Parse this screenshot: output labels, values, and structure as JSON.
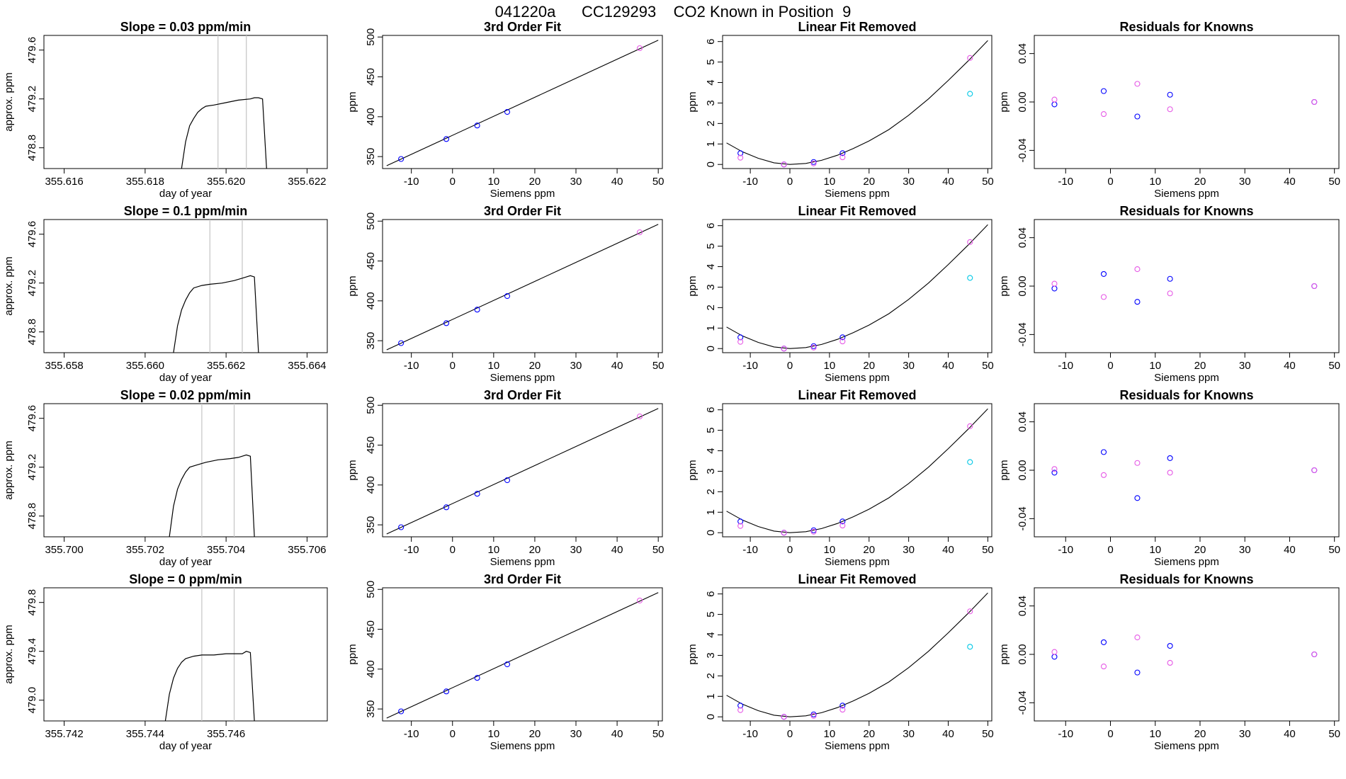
{
  "figure_title": "041220a      CC129293    CO2 Known in Position  9",
  "colors": {
    "series_blue": "#0000ff",
    "series_magenta": "#e659e6",
    "series_cyan": "#00c8e6",
    "line": "#000000",
    "window_marker": "#c8c8c8",
    "noise_red": "#ff0000"
  },
  "chart_data": [
    {
      "type": "line",
      "panel": "timeseries",
      "row": 0,
      "title": "Slope =  0.03  ppm/min",
      "xlabel": "day of year",
      "ylabel": "approx. ppm",
      "xlim": [
        355.6155,
        355.6225
      ],
      "ylim": [
        478.63,
        479.72
      ],
      "xticks": [
        "355.616",
        "355.618",
        "355.620",
        "355.622"
      ],
      "yticks": [
        "478.8",
        "479.2",
        "479.6"
      ],
      "window_markers": [
        355.6198,
        355.6205
      ],
      "series": [
        {
          "x": [
            355.6189,
            355.619,
            355.6191,
            355.6192,
            355.6193,
            355.6194,
            355.6195,
            355.6197,
            355.62,
            355.6203,
            355.6206,
            355.6207,
            355.6208,
            355.6209,
            355.621
          ],
          "y": [
            478.63,
            478.85,
            478.98,
            479.04,
            479.09,
            479.12,
            479.14,
            479.15,
            479.17,
            479.19,
            479.2,
            479.21,
            479.21,
            479.2,
            478.63
          ]
        }
      ]
    },
    {
      "type": "scatter",
      "panel": "fit",
      "row": 0,
      "title": "3rd Order Fit",
      "xlabel": "Siemens ppm",
      "ylabel": "ppm",
      "xlim": [
        -17,
        51
      ],
      "ylim": [
        335,
        502
      ],
      "xticks": [
        -10,
        0,
        10,
        20,
        30,
        40,
        50
      ],
      "yticks": [
        350,
        400,
        450,
        500
      ],
      "fit_line": {
        "x": [
          -16,
          50
        ],
        "y": [
          338.5,
          496
        ]
      },
      "series": [
        {
          "x": [
            -12.5,
            -1.5,
            6,
            13.3
          ],
          "y": [
            347,
            372,
            389,
            406
          ]
        },
        {
          "x": [
            45.5
          ],
          "y": [
            486
          ]
        }
      ]
    },
    {
      "type": "scatter",
      "panel": "linear_removed",
      "row": 0,
      "title": "Linear Fit Removed",
      "xlabel": "Siemens ppm",
      "ylabel": "ppm",
      "xlim": [
        -17,
        51
      ],
      "ylim": [
        -0.2,
        6.3
      ],
      "xticks": [
        -10,
        0,
        10,
        20,
        30,
        40,
        50
      ],
      "yticks": [
        0,
        1,
        2,
        3,
        4,
        5,
        6
      ],
      "curve": {
        "x": [
          -16,
          -12,
          -8,
          -4,
          0,
          4,
          8,
          12,
          16,
          20,
          25,
          30,
          35,
          40,
          45,
          50
        ],
        "y": [
          1.05,
          0.62,
          0.3,
          0.08,
          0,
          0.05,
          0.2,
          0.45,
          0.78,
          1.15,
          1.7,
          2.4,
          3.2,
          4.1,
          5.05,
          6.05
        ]
      },
      "series": [
        {
          "x": [
            -12.5,
            -1.5,
            6,
            13.3
          ],
          "y": [
            0.55,
            0,
            0.12,
            0.55
          ]
        },
        {
          "x": [
            -12.5,
            -1.5,
            6,
            13.3,
            45.5
          ],
          "y": [
            0.33,
            0,
            0.05,
            0.35,
            5.2
          ]
        },
        {
          "x": [
            45.5
          ],
          "y": [
            3.45
          ]
        }
      ]
    },
    {
      "type": "scatter",
      "panel": "residuals",
      "row": 0,
      "title": "Residuals for Knowns",
      "xlabel": "Siemens ppm",
      "ylabel": "ppm",
      "xlim": [
        -17,
        51
      ],
      "ylim": [
        -0.055,
        0.055
      ],
      "xticks": [
        -10,
        0,
        10,
        20,
        30,
        40,
        50
      ],
      "yticks": [
        "-0.04",
        "0.00",
        "0.04"
      ],
      "series": [
        {
          "x": [
            -12.5,
            -1.5,
            6,
            13.3,
            45.5
          ],
          "y": [
            -0.002,
            0.009,
            -0.012,
            0.006,
            0
          ]
        },
        {
          "x": [
            -12.5,
            -1.5,
            6,
            13.3,
            45.5
          ],
          "y": [
            0.002,
            -0.01,
            0.015,
            -0.006,
            0
          ]
        }
      ]
    },
    {
      "type": "line",
      "panel": "timeseries",
      "row": 1,
      "title": "Slope =  0.1  ppm/min",
      "xlabel": "day of year",
      "ylabel": "approx. ppm",
      "xlim": [
        355.6575,
        355.6645
      ],
      "ylim": [
        478.63,
        479.72
      ],
      "xticks": [
        "355.658",
        "355.660",
        "355.662",
        "355.664"
      ],
      "yticks": [
        "478.8",
        "479.2",
        "479.6"
      ],
      "window_markers": [
        355.6616,
        355.6624
      ],
      "series": [
        {
          "x": [
            355.6607,
            355.6608,
            355.6609,
            355.661,
            355.6611,
            355.6612,
            355.6614,
            355.6616,
            355.6619,
            355.6622,
            355.6624,
            355.6625,
            355.6626,
            355.6627,
            355.6628
          ],
          "y": [
            478.63,
            478.85,
            478.98,
            479.06,
            479.12,
            479.16,
            479.18,
            479.19,
            479.2,
            479.22,
            479.24,
            479.25,
            479.26,
            479.25,
            478.63
          ]
        }
      ]
    },
    {
      "type": "scatter",
      "panel": "fit",
      "row": 1,
      "title": "3rd Order Fit",
      "xlabel": "Siemens ppm",
      "ylabel": "ppm",
      "xlim": [
        -17,
        51
      ],
      "ylim": [
        335,
        502
      ],
      "xticks": [
        -10,
        0,
        10,
        20,
        30,
        40,
        50
      ],
      "yticks": [
        350,
        400,
        450,
        500
      ],
      "fit_line": {
        "x": [
          -16,
          50
        ],
        "y": [
          338.5,
          496
        ]
      },
      "series": [
        {
          "x": [
            -12.5,
            -1.5,
            6,
            13.3
          ],
          "y": [
            347,
            372,
            389,
            406
          ]
        },
        {
          "x": [
            45.5
          ],
          "y": [
            486
          ]
        }
      ]
    },
    {
      "type": "scatter",
      "panel": "linear_removed",
      "row": 1,
      "title": "Linear Fit Removed",
      "xlabel": "Siemens ppm",
      "ylabel": "ppm",
      "xlim": [
        -17,
        51
      ],
      "ylim": [
        -0.2,
        6.3
      ],
      "xticks": [
        -10,
        0,
        10,
        20,
        30,
        40,
        50
      ],
      "yticks": [
        0,
        1,
        2,
        3,
        4,
        5,
        6
      ],
      "curve": {
        "x": [
          -16,
          -12,
          -8,
          -4,
          0,
          4,
          8,
          12,
          16,
          20,
          25,
          30,
          35,
          40,
          45,
          50
        ],
        "y": [
          1.05,
          0.62,
          0.3,
          0.08,
          0,
          0.05,
          0.2,
          0.45,
          0.78,
          1.15,
          1.7,
          2.4,
          3.2,
          4.1,
          5.05,
          6.05
        ]
      },
      "series": [
        {
          "x": [
            -12.5,
            -1.5,
            6,
            13.3
          ],
          "y": [
            0.55,
            0,
            0.12,
            0.55
          ]
        },
        {
          "x": [
            -12.5,
            -1.5,
            6,
            13.3,
            45.5
          ],
          "y": [
            0.33,
            0,
            0.05,
            0.35,
            5.2
          ]
        },
        {
          "x": [
            45.5
          ],
          "y": [
            3.45
          ]
        }
      ]
    },
    {
      "type": "scatter",
      "panel": "residuals",
      "row": 1,
      "title": "Residuals for Knowns",
      "xlabel": "Siemens ppm",
      "ylabel": "ppm",
      "xlim": [
        -17,
        51
      ],
      "ylim": [
        -0.055,
        0.055
      ],
      "xticks": [
        -10,
        0,
        10,
        20,
        30,
        40,
        50
      ],
      "yticks": [
        "-0.04",
        "0.00",
        "0.04"
      ],
      "series": [
        {
          "x": [
            -12.5,
            -1.5,
            6,
            13.3,
            45.5
          ],
          "y": [
            -0.002,
            0.01,
            -0.013,
            0.006,
            0
          ]
        },
        {
          "x": [
            -12.5,
            -1.5,
            6,
            13.3,
            45.5
          ],
          "y": [
            0.002,
            -0.009,
            0.014,
            -0.006,
            0
          ]
        }
      ]
    },
    {
      "type": "line",
      "panel": "timeseries",
      "row": 2,
      "title": "Slope =  0.02  ppm/min",
      "xlabel": "day of year",
      "ylabel": "approx. ppm",
      "xlim": [
        355.6995,
        355.7065
      ],
      "ylim": [
        478.63,
        479.72
      ],
      "xticks": [
        "355.700",
        "355.702",
        "355.704",
        "355.706"
      ],
      "yticks": [
        "478.8",
        "479.2",
        "479.6"
      ],
      "window_markers": [
        355.7034,
        355.7042
      ],
      "series": [
        {
          "x": [
            355.7026,
            355.7027,
            355.7028,
            355.7029,
            355.703,
            355.7031,
            355.7033,
            355.7035,
            355.7038,
            355.7041,
            355.7043,
            355.7044,
            355.7045,
            355.7046,
            355.7047
          ],
          "y": [
            478.63,
            478.88,
            479.02,
            479.1,
            479.16,
            479.2,
            479.22,
            479.24,
            479.26,
            479.27,
            479.28,
            479.29,
            479.3,
            479.29,
            478.63
          ]
        }
      ]
    },
    {
      "type": "scatter",
      "panel": "fit",
      "row": 2,
      "title": "3rd Order Fit",
      "xlabel": "Siemens ppm",
      "ylabel": "ppm",
      "xlim": [
        -17,
        51
      ],
      "ylim": [
        335,
        502
      ],
      "xticks": [
        -10,
        0,
        10,
        20,
        30,
        40,
        50
      ],
      "yticks": [
        350,
        400,
        450,
        500
      ],
      "fit_line": {
        "x": [
          -16,
          50
        ],
        "y": [
          338.5,
          496
        ]
      },
      "series": [
        {
          "x": [
            -12.5,
            -1.5,
            6,
            13.3
          ],
          "y": [
            347,
            372,
            389,
            406
          ]
        },
        {
          "x": [
            45.5
          ],
          "y": [
            486
          ]
        }
      ]
    },
    {
      "type": "scatter",
      "panel": "linear_removed",
      "row": 2,
      "title": "Linear Fit Removed",
      "xlabel": "Siemens ppm",
      "ylabel": "ppm",
      "xlim": [
        -17,
        51
      ],
      "ylim": [
        -0.2,
        6.3
      ],
      "xticks": [
        -10,
        0,
        10,
        20,
        30,
        40,
        50
      ],
      "yticks": [
        0,
        1,
        2,
        3,
        4,
        5,
        6
      ],
      "curve": {
        "x": [
          -16,
          -12,
          -8,
          -4,
          0,
          4,
          8,
          12,
          16,
          20,
          25,
          30,
          35,
          40,
          45,
          50
        ],
        "y": [
          1.05,
          0.62,
          0.3,
          0.08,
          0,
          0.05,
          0.2,
          0.45,
          0.78,
          1.15,
          1.7,
          2.4,
          3.2,
          4.1,
          5.05,
          6.05
        ]
      },
      "series": [
        {
          "x": [
            -12.5,
            -1.5,
            6,
            13.3
          ],
          "y": [
            0.55,
            0,
            0.12,
            0.55
          ]
        },
        {
          "x": [
            -12.5,
            -1.5,
            6,
            13.3,
            45.5
          ],
          "y": [
            0.33,
            0,
            0.05,
            0.35,
            5.2
          ]
        },
        {
          "x": [
            45.5
          ],
          "y": [
            3.45
          ]
        }
      ]
    },
    {
      "type": "scatter",
      "panel": "residuals",
      "row": 2,
      "title": "Residuals for Knowns",
      "xlabel": "Siemens ppm",
      "ylabel": "ppm",
      "xlim": [
        -17,
        51
      ],
      "ylim": [
        -0.055,
        0.055
      ],
      "xticks": [
        -10,
        0,
        10,
        20,
        30,
        40,
        50
      ],
      "yticks": [
        "-0.04",
        "0.00",
        "0.04"
      ],
      "series": [
        {
          "x": [
            -12.5,
            -1.5,
            6,
            13.3,
            45.5
          ],
          "y": [
            -0.002,
            0.015,
            -0.023,
            0.01,
            0
          ]
        },
        {
          "x": [
            -12.5,
            -1.5,
            6,
            13.3,
            45.5
          ],
          "y": [
            0.001,
            -0.004,
            0.006,
            -0.002,
            0
          ]
        }
      ]
    },
    {
      "type": "line",
      "panel": "timeseries",
      "row": 3,
      "title": "Slope =  0  ppm/min",
      "xlabel": "day of year",
      "ylabel": "approx. ppm",
      "xlim": [
        355.7415,
        355.7485
      ],
      "ylim": [
        478.83,
        479.92
      ],
      "xticks": [
        "355.742",
        "355.744",
        "355.746"
      ],
      "yticks": [
        "479.0",
        "479.4",
        "479.8"
      ],
      "window_markers": [
        355.7454,
        355.7462
      ],
      "series": [
        {
          "x": [
            355.7445,
            355.7446,
            355.7447,
            355.7448,
            355.7449,
            355.745,
            355.7452,
            355.7454,
            355.7457,
            355.746,
            355.7462,
            355.7464,
            355.7465,
            355.7466,
            355.7467
          ],
          "y": [
            478.83,
            479.05,
            479.18,
            479.26,
            479.31,
            479.34,
            479.36,
            479.37,
            479.37,
            479.38,
            479.38,
            479.38,
            479.4,
            479.39,
            478.83
          ]
        }
      ]
    },
    {
      "type": "scatter",
      "panel": "fit",
      "row": 3,
      "title": "3rd Order Fit",
      "xlabel": "Siemens ppm",
      "ylabel": "ppm",
      "xlim": [
        -17,
        51
      ],
      "ylim": [
        335,
        502
      ],
      "xticks": [
        -10,
        0,
        10,
        20,
        30,
        40,
        50
      ],
      "yticks": [
        350,
        400,
        450,
        500
      ],
      "fit_line": {
        "x": [
          -16,
          50
        ],
        "y": [
          338.5,
          496
        ]
      },
      "series": [
        {
          "x": [
            -12.5,
            -1.5,
            6,
            13.3
          ],
          "y": [
            347,
            372,
            389,
            406
          ]
        },
        {
          "x": [
            45.5
          ],
          "y": [
            486
          ]
        }
      ]
    },
    {
      "type": "scatter",
      "panel": "linear_removed",
      "row": 3,
      "title": "Linear Fit Removed",
      "xlabel": "Siemens ppm",
      "ylabel": "ppm",
      "xlim": [
        -17,
        51
      ],
      "ylim": [
        -0.2,
        6.3
      ],
      "xticks": [
        -10,
        0,
        10,
        20,
        30,
        40,
        50
      ],
      "yticks": [
        0,
        1,
        2,
        3,
        4,
        5,
        6
      ],
      "curve": {
        "x": [
          -16,
          -12,
          -8,
          -4,
          0,
          4,
          8,
          12,
          16,
          20,
          25,
          30,
          35,
          40,
          45,
          50
        ],
        "y": [
          1.05,
          0.62,
          0.3,
          0.08,
          0,
          0.05,
          0.2,
          0.45,
          0.78,
          1.15,
          1.7,
          2.4,
          3.2,
          4.1,
          5.05,
          6.05
        ]
      },
      "series": [
        {
          "x": [
            -12.5,
            -1.5,
            6,
            13.3
          ],
          "y": [
            0.55,
            0,
            0.12,
            0.55
          ]
        },
        {
          "x": [
            -12.5,
            -1.5,
            6,
            13.3,
            45.5
          ],
          "y": [
            0.33,
            0,
            0.05,
            0.35,
            5.15
          ]
        },
        {
          "x": [
            45.5
          ],
          "y": [
            3.42
          ]
        }
      ]
    },
    {
      "type": "scatter",
      "panel": "residuals",
      "row": 3,
      "title": "Residuals for Knowns",
      "xlabel": "Siemens ppm",
      "ylabel": "ppm",
      "xlim": [
        -17,
        51
      ],
      "ylim": [
        -0.055,
        0.055
      ],
      "xticks": [
        -10,
        0,
        10,
        20,
        30,
        40,
        50
      ],
      "yticks": [
        "-0.04",
        "0.00",
        "0.04"
      ],
      "series": [
        {
          "x": [
            -12.5,
            -1.5,
            6,
            13.3,
            45.5
          ],
          "y": [
            -0.002,
            0.01,
            -0.015,
            0.007,
            0
          ]
        },
        {
          "x": [
            -12.5,
            -1.5,
            6,
            13.3,
            45.5
          ],
          "y": [
            0.002,
            -0.01,
            0.014,
            -0.007,
            0
          ]
        }
      ]
    }
  ]
}
